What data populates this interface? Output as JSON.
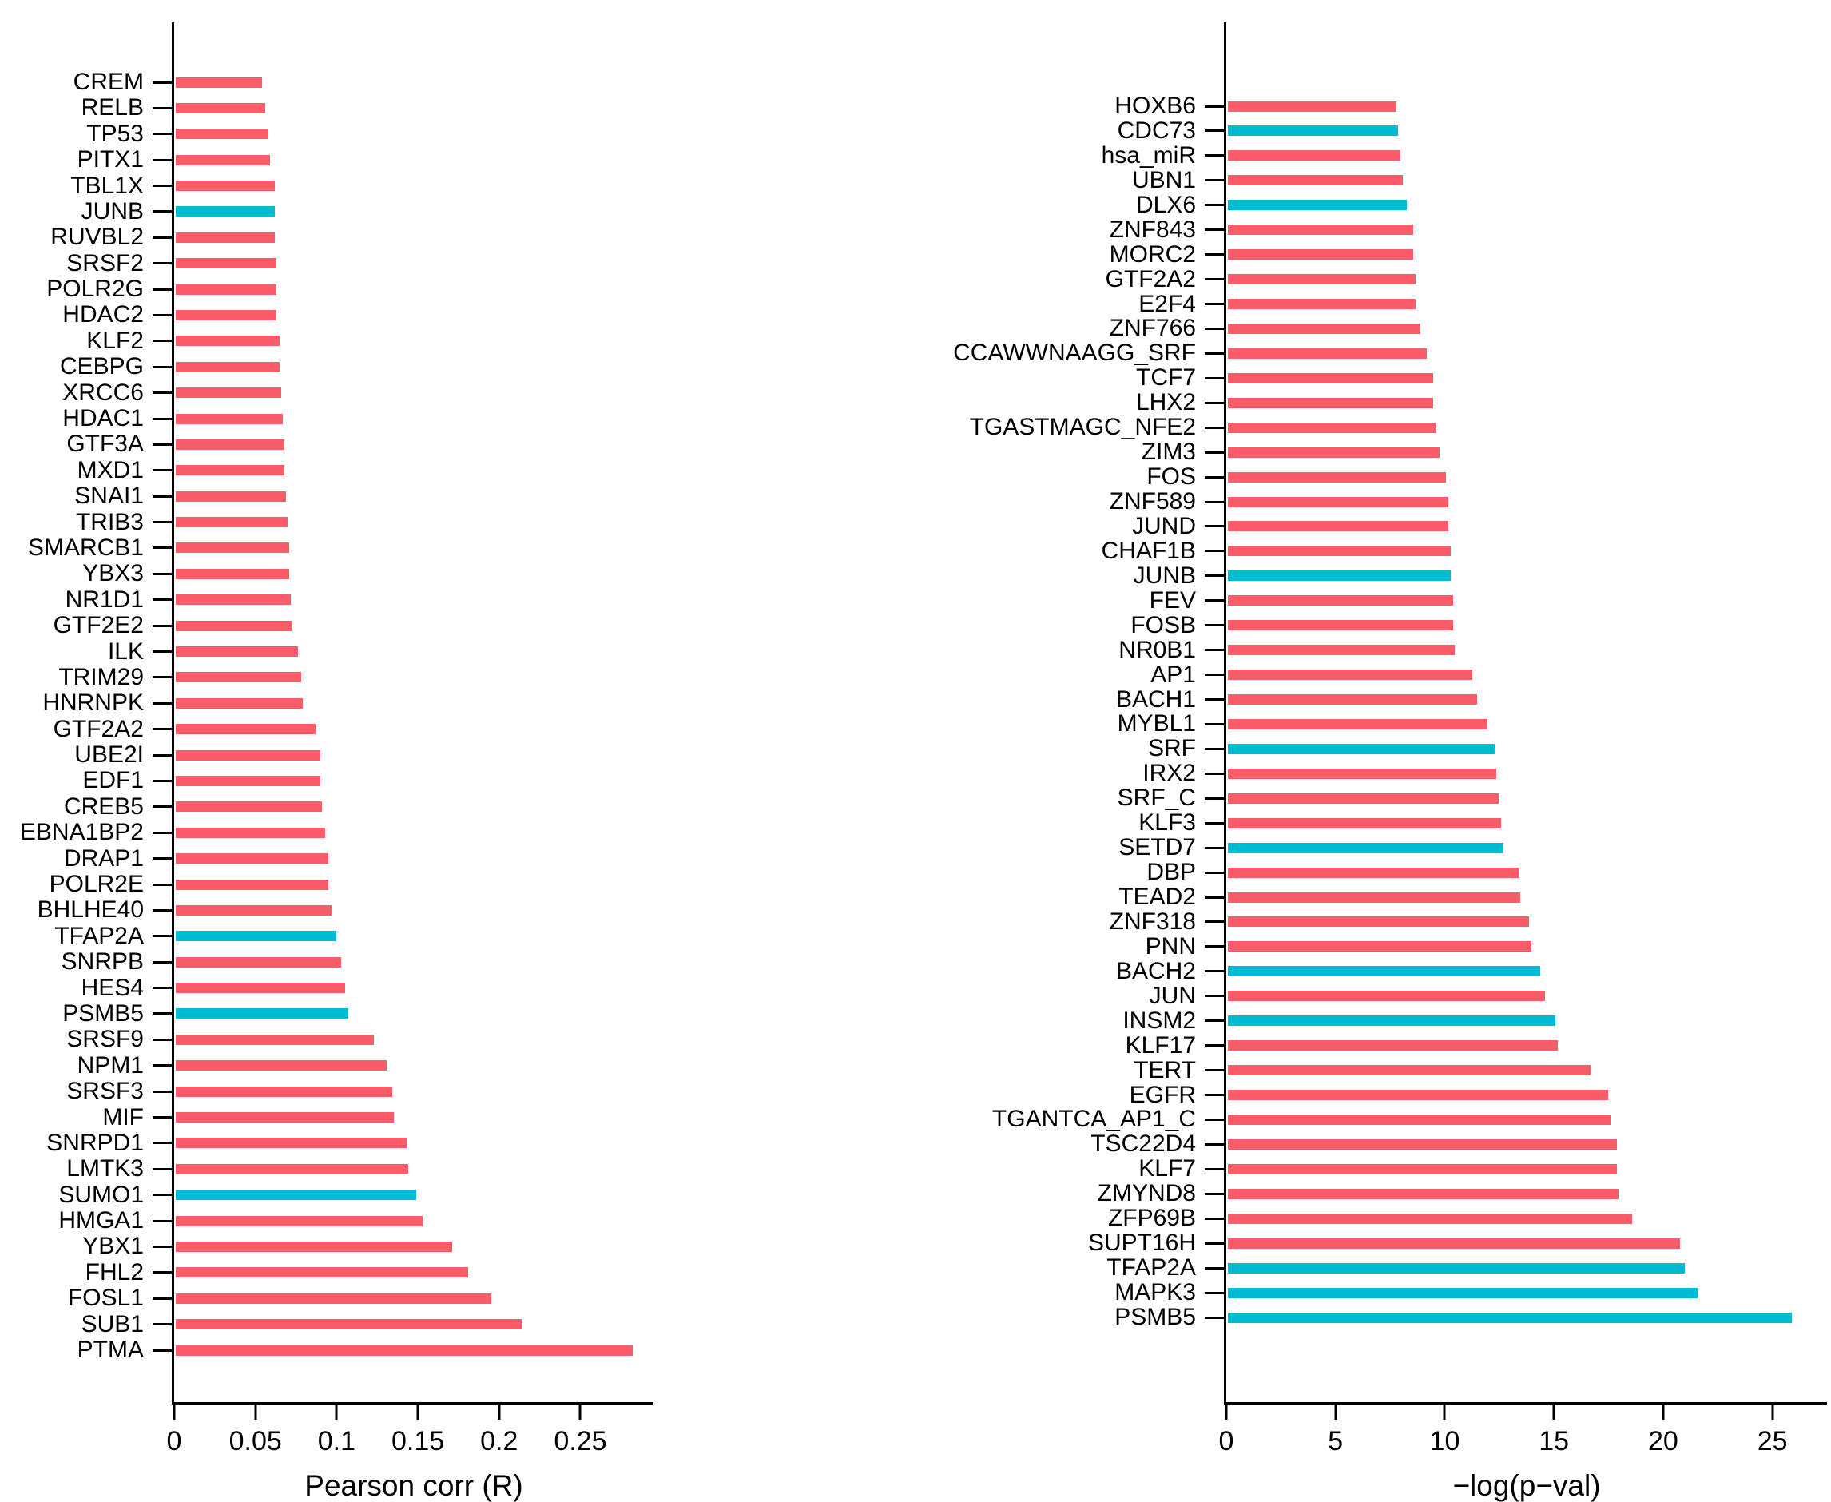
{
  "figure": {
    "background": "#ffffff",
    "description": "Two horizontal bar charts side by side"
  },
  "palette": {
    "bar_default": "#FA5C69",
    "bar_highlight": "#00BCD2",
    "axis": "#000000",
    "text": "#000000"
  },
  "chart_data": [
    {
      "type": "bar",
      "orientation": "horizontal",
      "title": "",
      "xlabel": "Pearson corr (R)",
      "ylabel": "",
      "xlim": [
        0,
        0.295
      ],
      "xticks": [
        0,
        0.05,
        0.1,
        0.15,
        0.2,
        0.25
      ],
      "xtick_labels": [
        "0",
        "0.05",
        "0.1",
        "0.15",
        "0.2",
        "0.25"
      ],
      "grid": false,
      "legend": null,
      "bar_color_default": "#FA5C69",
      "bar_color_highlight": "#00BCD2",
      "highlighted": [
        "JUNB",
        "TFAP2A",
        "PSMB5",
        "SUMO1"
      ],
      "categories": [
        "CREM",
        "RELB",
        "TP53",
        "PITX1",
        "TBL1X",
        "JUNB",
        "RUVBL2",
        "SRSF2",
        "POLR2G",
        "HDAC2",
        "KLF2",
        "CEBPG",
        "XRCC6",
        "HDAC1",
        "GTF3A",
        "MXD1",
        "SNAI1",
        "TRIB3",
        "SMARCB1",
        "YBX3",
        "NR1D1",
        "GTF2E2",
        "ILK",
        "TRIM29",
        "HNRNPK",
        "GTF2A2",
        "UBE2I",
        "EDF1",
        "CREB5",
        "EBNA1BP2",
        "DRAP1",
        "POLR2E",
        "BHLHE40",
        "TFAP2A",
        "SNRPB",
        "HES4",
        "PSMB5",
        "SRSF9",
        "NPM1",
        "SRSF3",
        "MIF",
        "SNRPD1",
        "LMTK3",
        "SUMO1",
        "HMGA1",
        "YBX1",
        "FHL2",
        "FOSL1",
        "SUB1",
        "PTMA"
      ],
      "values": [
        0.053,
        0.055,
        0.057,
        0.058,
        0.061,
        0.061,
        0.061,
        0.062,
        0.062,
        0.062,
        0.064,
        0.064,
        0.065,
        0.066,
        0.067,
        0.067,
        0.068,
        0.069,
        0.07,
        0.07,
        0.071,
        0.072,
        0.075,
        0.077,
        0.078,
        0.086,
        0.089,
        0.089,
        0.09,
        0.092,
        0.094,
        0.094,
        0.096,
        0.099,
        0.102,
        0.104,
        0.106,
        0.122,
        0.13,
        0.133,
        0.134,
        0.142,
        0.143,
        0.148,
        0.152,
        0.17,
        0.18,
        0.194,
        0.213,
        0.281
      ]
    },
    {
      "type": "bar",
      "orientation": "horizontal",
      "title": "",
      "xlabel": "−log(p−val)",
      "ylabel": "",
      "xlim": [
        0,
        27.5
      ],
      "xticks": [
        0,
        5,
        10,
        15,
        20,
        25
      ],
      "xtick_labels": [
        "0",
        "5",
        "10",
        "15",
        "20",
        "25"
      ],
      "grid": false,
      "legend": null,
      "bar_color_default": "#FA5C69",
      "bar_color_highlight": "#00BCD2",
      "highlighted": [
        "CDC73",
        "DLX6",
        "JUNB",
        "SRF",
        "SETD7",
        "BACH2",
        "INSM2",
        "TFAP2A",
        "MAPK3",
        "PSMB5"
      ],
      "categories": [
        "HOXB6",
        "CDC73",
        "hsa_miR",
        "UBN1",
        "DLX6",
        "ZNF843",
        "MORC2",
        "GTF2A2",
        "E2F4",
        "ZNF766",
        "CCAWWNAAGG_SRF",
        "TCF7",
        "LHX2",
        "TGASTMAGC_NFE2",
        "ZIM3",
        "FOS",
        "ZNF589",
        "JUND",
        "CHAF1B",
        "JUNB",
        "FEV",
        "FOSB",
        "NR0B1",
        "AP1",
        "BACH1",
        "MYBL1",
        "SRF",
        "IRX2",
        "SRF_C",
        "KLF3",
        "SETD7",
        "DBP",
        "TEAD2",
        "ZNF318",
        "PNN",
        "BACH2",
        "JUN",
        "INSM2",
        "KLF17",
        "TERT",
        "EGFR",
        "TGANTCA_AP1_C",
        "TSC22D4",
        "KLF7",
        "ZMYND8",
        "ZFP69B",
        "SUPT16H",
        "TFAP2A",
        "MAPK3",
        "PSMB5"
      ],
      "values": [
        7.7,
        7.8,
        7.9,
        8.0,
        8.2,
        8.5,
        8.5,
        8.6,
        8.6,
        8.8,
        9.1,
        9.4,
        9.4,
        9.5,
        9.7,
        10.0,
        10.1,
        10.1,
        10.2,
        10.2,
        10.3,
        10.3,
        10.4,
        11.2,
        11.4,
        11.9,
        12.2,
        12.3,
        12.4,
        12.5,
        12.6,
        13.3,
        13.4,
        13.8,
        13.9,
        14.3,
        14.5,
        15.0,
        15.1,
        16.6,
        17.4,
        17.5,
        17.8,
        17.8,
        17.9,
        18.5,
        20.7,
        20.9,
        21.5,
        25.8
      ]
    }
  ]
}
